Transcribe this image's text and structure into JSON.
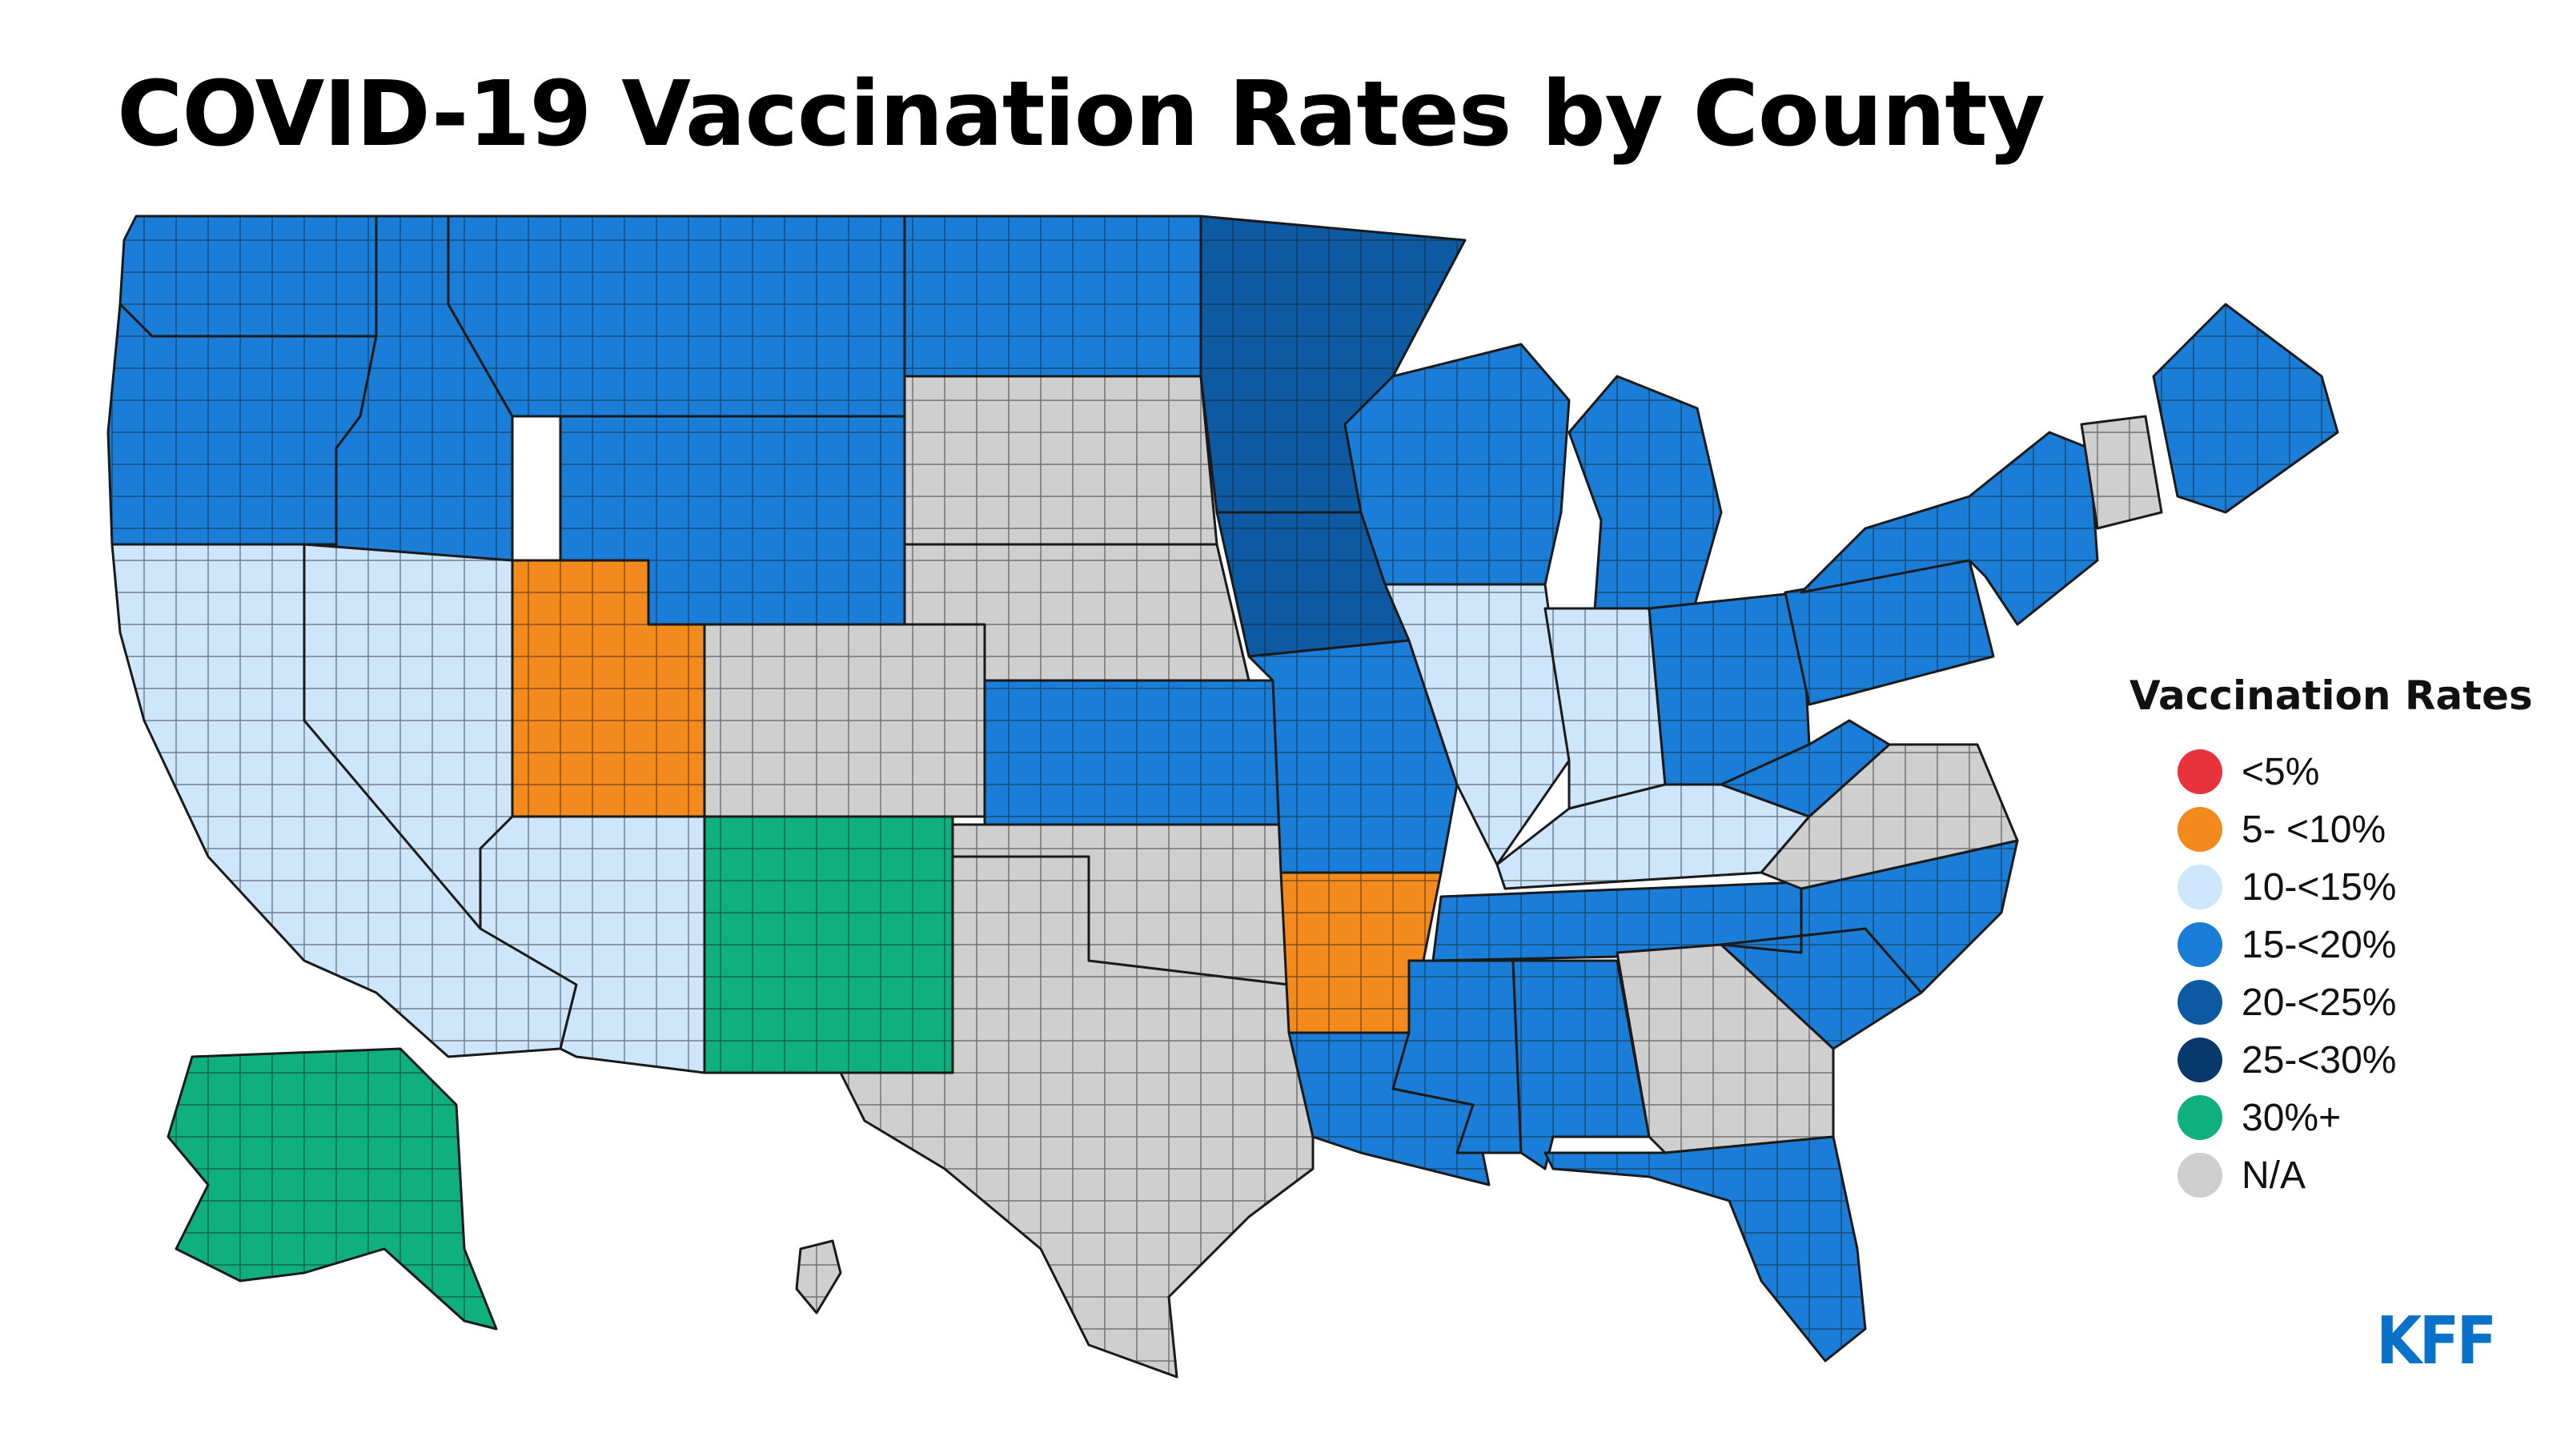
{
  "title": "COVID-19 Vaccination Rates by County",
  "legend": {
    "title": "Vaccination Rates",
    "items": [
      {
        "label": "<5%",
        "color": "#e8323c"
      },
      {
        "label": "5- <10%",
        "color": "#f28a1d"
      },
      {
        "label": "10-<15%",
        "color": "#cde6fb"
      },
      {
        "label": "15-<20%",
        "color": "#1a7dd8"
      },
      {
        "label": "20-<25%",
        "color": "#0d5aa3"
      },
      {
        "label": "25-<30%",
        "color": "#073a6b"
      },
      {
        "label": "30%+",
        "color": "#10b07e"
      },
      {
        "label": "N/A",
        "color": "#cfcfcf"
      }
    ]
  },
  "regions": [
    {
      "name": "Washington",
      "category": "15-<20%"
    },
    {
      "name": "Oregon",
      "category": "15-<20%"
    },
    {
      "name": "California",
      "category": "10-<15%"
    },
    {
      "name": "Idaho",
      "category": "15-<20%"
    },
    {
      "name": "Nevada",
      "category": "10-<15%"
    },
    {
      "name": "Montana",
      "category": "15-<20%"
    },
    {
      "name": "Wyoming",
      "category": "15-<20%"
    },
    {
      "name": "Utah",
      "category": "5- <10%"
    },
    {
      "name": "Arizona",
      "category": "10-<15%"
    },
    {
      "name": "New Mexico",
      "category": "30%+"
    },
    {
      "name": "Colorado",
      "category": "N/A"
    },
    {
      "name": "North Dakota",
      "category": "15-<20%"
    },
    {
      "name": "South Dakota",
      "category": "N/A"
    },
    {
      "name": "Nebraska",
      "category": "N/A"
    },
    {
      "name": "Kansas",
      "category": "15-<20%"
    },
    {
      "name": "Oklahoma",
      "category": "N/A"
    },
    {
      "name": "Texas",
      "category": "N/A"
    },
    {
      "name": "Minnesota",
      "category": "20-<25%"
    },
    {
      "name": "Iowa",
      "category": "20-<25%"
    },
    {
      "name": "Missouri",
      "category": "15-<20%"
    },
    {
      "name": "Arkansas",
      "category": "5- <10%"
    },
    {
      "name": "Louisiana",
      "category": "15-<20%"
    },
    {
      "name": "Wisconsin",
      "category": "15-<20%"
    },
    {
      "name": "Illinois",
      "category": "10-<15%"
    },
    {
      "name": "Michigan",
      "category": "15-<20%"
    },
    {
      "name": "Indiana",
      "category": "10-<15%"
    },
    {
      "name": "Ohio",
      "category": "15-<20%"
    },
    {
      "name": "Kentucky",
      "category": "10-<15%"
    },
    {
      "name": "Tennessee",
      "category": "15-<20%"
    },
    {
      "name": "Mississippi",
      "category": "15-<20%"
    },
    {
      "name": "Alabama",
      "category": "15-<20%"
    },
    {
      "name": "Georgia",
      "category": "N/A"
    },
    {
      "name": "Florida",
      "category": "15-<20%"
    },
    {
      "name": "South Carolina",
      "category": "15-<20%"
    },
    {
      "name": "North Carolina",
      "category": "15-<20%"
    },
    {
      "name": "Virginia",
      "category": "N/A"
    },
    {
      "name": "West Virginia",
      "category": "15-<20%"
    },
    {
      "name": "Pennsylvania",
      "category": "15-<20%"
    },
    {
      "name": "New York",
      "category": "15-<20%"
    },
    {
      "name": "Vermont",
      "category": "N/A"
    },
    {
      "name": "Maine",
      "category": "15-<20%"
    },
    {
      "name": "Alaska",
      "category": "30%+"
    },
    {
      "name": "Hawaii",
      "category": "N/A"
    }
  ],
  "logo": "KFF"
}
